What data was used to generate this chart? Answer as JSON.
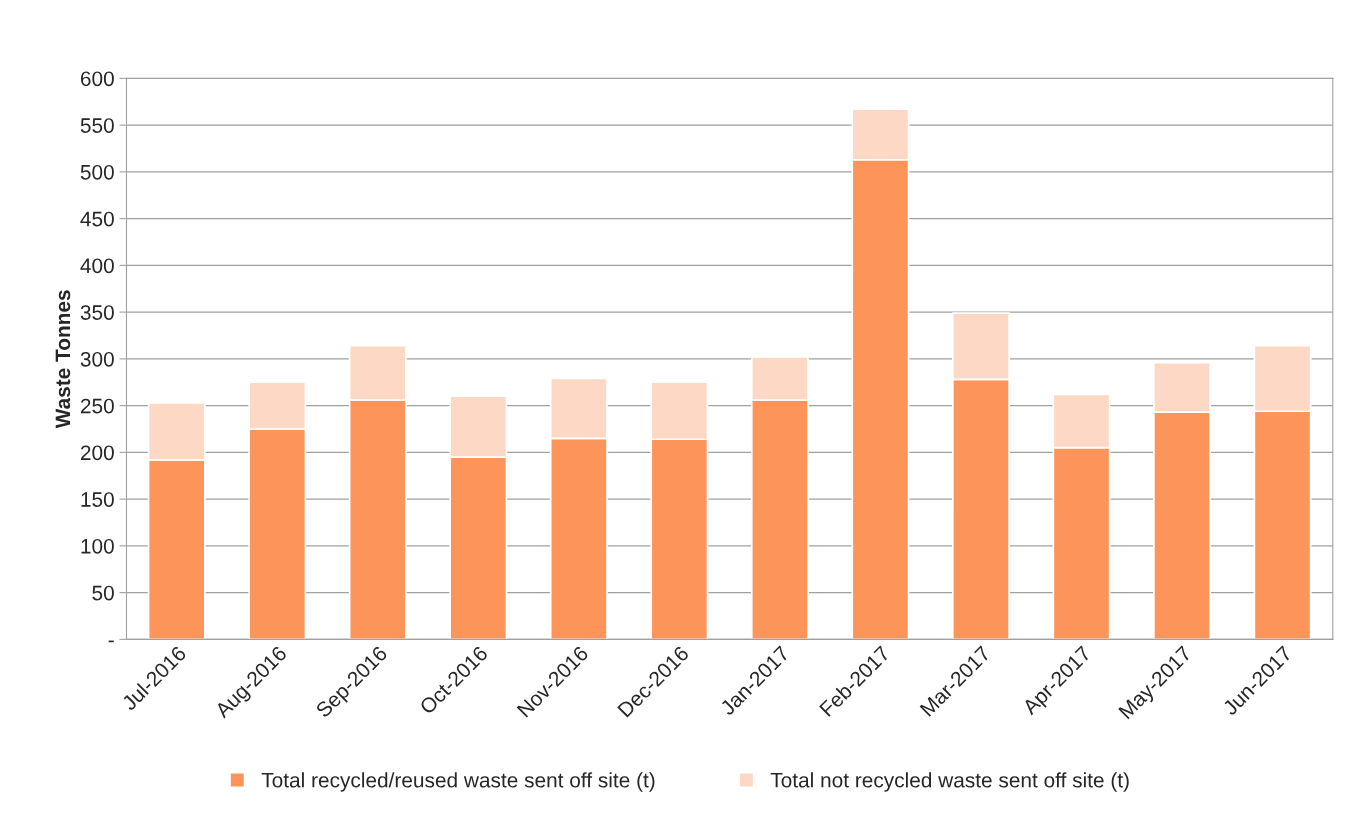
{
  "chart_data": {
    "type": "bar",
    "stacked": true,
    "ylabel": "Waste Tonnes",
    "categories": [
      "Jul-2016",
      "Aug-2016",
      "Sep-2016",
      "Oct-2016",
      "Nov-2016",
      "Dec-2016",
      "Jan-2017",
      "Feb-2017",
      "Mar-2017",
      "Apr-2017",
      "May-2017",
      "Jun-2017"
    ],
    "series": [
      {
        "name": "Total recycled/reused waste sent off site (t)",
        "color": "#fd9459",
        "values": [
          192,
          225,
          256,
          195,
          215,
          214,
          256,
          513,
          278,
          205,
          243,
          244
        ]
      },
      {
        "name": "Total not recycled waste sent off site (t)",
        "color": "#fdd8c4",
        "values": [
          61,
          50,
          58,
          65,
          64,
          61,
          46,
          54,
          71,
          57,
          53,
          70
        ]
      }
    ],
    "ylim": [
      0,
      600
    ],
    "yticks": [
      {
        "value": 0,
        "label": "-"
      },
      50,
      100,
      150,
      200,
      250,
      300,
      350,
      400,
      450,
      500,
      550,
      600
    ],
    "grid": "y",
    "legend": "bottom"
  }
}
